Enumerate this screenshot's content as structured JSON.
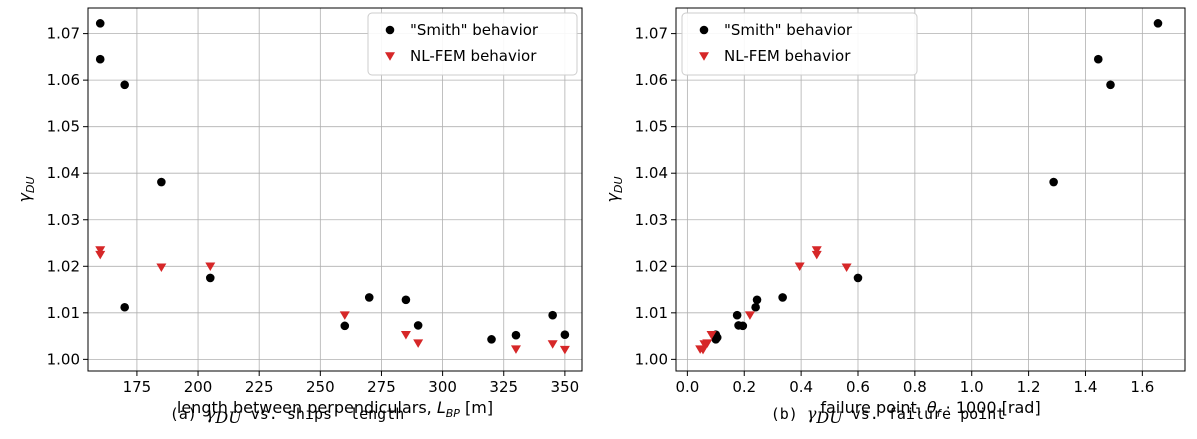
{
  "chart_data": [
    {
      "type": "scatter",
      "xlabel": "length between perpendiculars, ",
      "xlabel_symbol": "L",
      "xlabel_sub": "BP",
      "xlabel_unit": " [m]",
      "ylabel_symbol": "γ",
      "ylabel_sub": "DU",
      "xlim": [
        155,
        357
      ],
      "ylim": [
        0.9975,
        1.0755
      ],
      "xticks": [
        175,
        200,
        225,
        250,
        275,
        300,
        325,
        350
      ],
      "xtick_labels": [
        "175",
        "200",
        "225",
        "250",
        "275",
        "300",
        "325",
        "350"
      ],
      "yticks": [
        1.0,
        1.01,
        1.02,
        1.03,
        1.04,
        1.05,
        1.06,
        1.07
      ],
      "ytick_labels": [
        "1.00",
        "1.01",
        "1.02",
        "1.03",
        "1.04",
        "1.05",
        "1.06",
        "1.07"
      ],
      "grid": true,
      "legend_position": "top-right",
      "caption": {
        "prefix": "(a) ",
        "symbol": "γ",
        "sub": "DU",
        "rest": " vs. ships' length"
      },
      "series": [
        {
          "name": "\"Smith\" behavior",
          "marker": "circle",
          "color": "#000000",
          "points": [
            [
              160,
              1.0722
            ],
            [
              160,
              1.0645
            ],
            [
              170,
              1.059
            ],
            [
              185,
              1.0381
            ],
            [
              170,
              1.0112
            ],
            [
              205,
              1.0175
            ],
            [
              260,
              1.0072
            ],
            [
              270,
              1.0133
            ],
            [
              285,
              1.0128
            ],
            [
              290,
              1.0073
            ],
            [
              320,
              1.0043
            ],
            [
              330,
              1.0052
            ],
            [
              345,
              1.0095
            ],
            [
              350,
              1.0053
            ]
          ]
        },
        {
          "name": "NL-FEM behavior",
          "marker": "triangle-down",
          "color": "#d62728",
          "points": [
            [
              160,
              1.0235
            ],
            [
              160,
              1.0225
            ],
            [
              185,
              1.0198
            ],
            [
              205,
              1.02
            ],
            [
              260,
              1.0095
            ],
            [
              285,
              1.0053
            ],
            [
              290,
              1.0035
            ],
            [
              330,
              1.0022
            ],
            [
              345,
              1.0033
            ],
            [
              350,
              1.0021
            ]
          ]
        }
      ]
    },
    {
      "type": "scatter",
      "xlabel": "failure point, ",
      "xlabel_symbol": "θ",
      "xlabel_sub": "f",
      "xlabel_unit": " · 1000 [rad]",
      "ylabel_symbol": "γ",
      "ylabel_sub": "DU",
      "xlim": [
        -0.04,
        1.75
      ],
      "ylim": [
        0.9975,
        1.0755
      ],
      "xticks": [
        0.0,
        0.2,
        0.4,
        0.6,
        0.8,
        1.0,
        1.2,
        1.4,
        1.6
      ],
      "xtick_labels": [
        "0.0",
        "0.2",
        "0.4",
        "0.6",
        "0.8",
        "1.0",
        "1.2",
        "1.4",
        "1.6"
      ],
      "yticks": [
        1.0,
        1.01,
        1.02,
        1.03,
        1.04,
        1.05,
        1.06,
        1.07
      ],
      "ytick_labels": [
        "1.00",
        "1.01",
        "1.02",
        "1.03",
        "1.04",
        "1.05",
        "1.06",
        "1.07"
      ],
      "grid": true,
      "legend_position": "top-left",
      "caption": {
        "prefix": "(b) ",
        "symbol": "γ",
        "sub": "DU",
        "rest": " vs. failure point"
      },
      "series": [
        {
          "name": "\"Smith\" behavior",
          "marker": "circle",
          "color": "#000000",
          "points": [
            [
              1.655,
              1.0722
            ],
            [
              1.445,
              1.0645
            ],
            [
              1.488,
              1.059
            ],
            [
              1.288,
              1.0381
            ],
            [
              0.6,
              1.0175
            ],
            [
              0.335,
              1.0133
            ],
            [
              0.245,
              1.0128
            ],
            [
              0.24,
              1.0112
            ],
            [
              0.175,
              1.0095
            ],
            [
              0.18,
              1.0073
            ],
            [
              0.195,
              1.0072
            ],
            [
              0.1,
              1.0053
            ],
            [
              0.105,
              1.0047
            ],
            [
              0.1,
              1.0043
            ]
          ]
        },
        {
          "name": "NL-FEM behavior",
          "marker": "triangle-down",
          "color": "#d62728",
          "points": [
            [
              0.455,
              1.0235
            ],
            [
              0.455,
              1.0225
            ],
            [
              0.56,
              1.0198
            ],
            [
              0.395,
              1.02
            ],
            [
              0.22,
              1.0095
            ],
            [
              0.085,
              1.0053
            ],
            [
              0.07,
              1.0035
            ],
            [
              0.045,
              1.0022
            ],
            [
              0.06,
              1.0033
            ],
            [
              0.055,
              1.0021
            ]
          ]
        }
      ]
    }
  ]
}
